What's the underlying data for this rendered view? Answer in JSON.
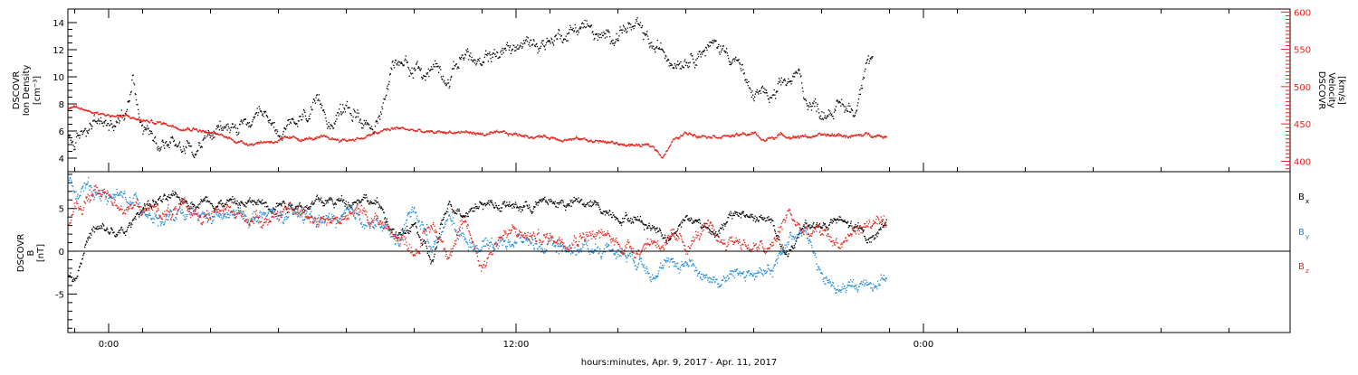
{
  "figure": {
    "xlabel": "hours:minutes, Apr.  9, 2017 - Apr. 11, 2017",
    "x_ticks": [
      "0:00",
      "12:00",
      "0:00"
    ],
    "xlim_hours": [
      -1.2,
      34.8
    ],
    "data_end_hour": 22.9
  },
  "chart_data": [
    {
      "type": "scatter",
      "panel": "plasma",
      "ylabel_left": [
        "DSCOVR",
        "Ion Density",
        "[cm⁻³]"
      ],
      "ylabel_right": [
        "DSCOVR",
        "Velocity",
        "[km/s]"
      ],
      "ylim_left": [
        3,
        15
      ],
      "yticks_left": [
        4,
        6,
        8,
        10,
        12,
        14
      ],
      "ylim_right": [
        386,
        604
      ],
      "yticks_right": [
        400,
        450,
        500,
        550,
        600
      ],
      "grid": false,
      "series": [
        {
          "name": "Ion Density",
          "axis": "left",
          "color": "#000000",
          "x": [
            -1.2,
            -1.0,
            -0.5,
            0.0,
            0.3,
            0.5,
            0.7,
            0.8,
            1.0,
            1.3,
            1.5,
            2.0,
            2.5,
            3.0,
            3.5,
            4.0,
            4.5,
            5.0,
            5.5,
            6.0,
            6.5,
            7.0,
            7.5,
            8.0,
            8.3,
            8.7,
            9.0,
            9.3,
            9.6,
            10.0,
            10.5,
            10.8,
            11.0,
            11.2,
            11.5,
            12.0,
            12.5,
            13.0,
            13.5,
            14.0,
            14.5,
            15.0,
            15.2,
            15.5,
            16.0,
            16.5,
            17.0,
            17.5,
            18.0,
            18.5,
            18.9,
            19.3,
            19.5,
            20.0,
            20.3,
            20.5,
            21.0,
            21.3,
            21.5,
            22.0,
            22.3,
            22.5
          ],
          "y": [
            5.5,
            5.0,
            6.8,
            6.5,
            7.0,
            7.5,
            10.5,
            9.0,
            6.5,
            6.0,
            5.5,
            5.2,
            5.0,
            5.8,
            6.2,
            6.3,
            6.5,
            6.0,
            6.2,
            7.5,
            7.0,
            7.8,
            7.0,
            6.8,
            10.5,
            11.5,
            10.8,
            10.0,
            11.0,
            10.2,
            12.0,
            11.0,
            10.5,
            11.5,
            11.8,
            12.2,
            12.5,
            12.8,
            13.5,
            14.0,
            12.5,
            13.5,
            13.8,
            13.5,
            12.0,
            11.5,
            11.8,
            12.5,
            12.2,
            11.5,
            8.5,
            9.0,
            8.0,
            9.5,
            10.0,
            8.5,
            7.5,
            8.0,
            7.8,
            7.5,
            12.0,
            11.8
          ]
        },
        {
          "name": "Velocity",
          "axis": "right",
          "color": "#e8231b",
          "x": [
            -1.2,
            -0.5,
            0.0,
            0.5,
            1.0,
            1.5,
            2.0,
            2.5,
            3.0,
            3.5,
            4.0,
            5.0,
            6.0,
            7.0,
            7.5,
            8.0,
            8.5,
            9.0,
            9.5,
            10.0,
            10.5,
            11.0,
            12.0,
            13.0,
            14.0,
            15.0,
            16.0,
            16.3,
            16.6,
            17.0,
            18.0,
            18.5,
            19.0,
            19.3,
            19.7,
            20.0,
            21.0,
            21.5,
            22.0,
            22.5,
            22.9
          ],
          "y": [
            471,
            468,
            463,
            460,
            455,
            452,
            448,
            446,
            438,
            432,
            425,
            429,
            431,
            429,
            433,
            440,
            445,
            442,
            438,
            440,
            440,
            437,
            436,
            433,
            430,
            424,
            420,
            408,
            428,
            438,
            436,
            435,
            438,
            428,
            436,
            435,
            434,
            436,
            434,
            437,
            435
          ]
        }
      ]
    },
    {
      "type": "scatter",
      "panel": "magnetic",
      "ylabel_left": [
        "DSCOVR",
        "B",
        "[nT]"
      ],
      "ylim": [
        -9.5,
        9.3
      ],
      "yticks": [
        -5,
        0,
        5
      ],
      "zero_line": true,
      "grid": false,
      "legend_position": "right",
      "series": [
        {
          "name": "B",
          "label_sub": "x",
          "color": "#000000",
          "x": [
            -1.2,
            -1.0,
            -0.7,
            -0.5,
            0.0,
            0.5,
            1.0,
            1.5,
            2.0,
            3.0,
            4.0,
            5.0,
            6.0,
            7.0,
            7.5,
            8.0,
            8.5,
            9.0,
            9.5,
            10.0,
            10.5,
            11.0,
            12.0,
            13.0,
            14.0,
            15.0,
            15.5,
            16.0,
            16.5,
            17.0,
            18.0,
            18.5,
            19.0,
            19.5,
            20.0,
            20.5,
            21.0,
            21.5,
            22.0,
            22.5,
            22.9
          ],
          "y": [
            -2.8,
            -3.0,
            1.0,
            2.5,
            2.2,
            2.0,
            5.5,
            6.0,
            5.8,
            6.2,
            5.5,
            6.0,
            5.5,
            6.0,
            6.8,
            5.0,
            1.5,
            3.0,
            -1.5,
            5.5,
            5.0,
            6.0,
            5.2,
            5.8,
            5.5,
            4.5,
            4.0,
            3.0,
            2.0,
            4.0,
            2.5,
            4.5,
            4.0,
            3.5,
            -1.0,
            3.5,
            3.0,
            3.5,
            2.5,
            1.5,
            4.0
          ]
        },
        {
          "name": "B",
          "label_sub": "y",
          "color": "#1c8ad8",
          "x": [
            -1.2,
            -0.8,
            -0.5,
            0.0,
            0.5,
            1.0,
            1.5,
            2.0,
            3.0,
            4.0,
            5.0,
            6.0,
            7.0,
            7.5,
            8.0,
            8.5,
            9.0,
            9.5,
            10.0,
            10.5,
            11.0,
            12.0,
            13.0,
            14.0,
            15.0,
            15.5,
            16.0,
            16.5,
            17.0,
            17.5,
            18.0,
            18.5,
            19.0,
            19.5,
            20.0,
            20.5,
            21.0,
            21.5,
            22.0,
            22.5,
            22.9
          ],
          "y": [
            8.0,
            7.5,
            7.2,
            6.5,
            6.0,
            5.5,
            4.0,
            3.8,
            3.8,
            4.2,
            4.0,
            3.8,
            3.5,
            4.0,
            3.0,
            1.0,
            5.5,
            0.5,
            4.0,
            1.5,
            1.0,
            1.5,
            0.5,
            0.5,
            0.5,
            -0.5,
            -1.5,
            -2.0,
            -1.0,
            -2.5,
            -3.5,
            -2.5,
            -2.5,
            -3.0,
            1.5,
            3.5,
            -3.5,
            -4.5,
            -4.0,
            -3.5,
            -2.5
          ]
        },
        {
          "name": "B",
          "label_sub": "z",
          "color": "#e8231b",
          "x": [
            -1.2,
            -1.0,
            -0.7,
            -0.5,
            0.0,
            0.5,
            1.0,
            1.5,
            2.0,
            3.0,
            4.0,
            5.0,
            6.0,
            7.0,
            7.5,
            8.0,
            8.5,
            9.0,
            9.5,
            10.0,
            10.5,
            11.0,
            11.5,
            12.0,
            13.0,
            14.0,
            15.0,
            15.5,
            16.0,
            16.5,
            17.0,
            17.5,
            18.0,
            18.5,
            19.0,
            19.5,
            20.0,
            20.5,
            21.0,
            21.5,
            22.0,
            22.5,
            22.9
          ],
          "y": [
            3.0,
            4.5,
            5.5,
            7.0,
            6.5,
            5.5,
            5.0,
            4.8,
            4.5,
            4.5,
            4.0,
            4.5,
            4.2,
            4.0,
            4.5,
            3.5,
            2.0,
            0.5,
            3.0,
            0.5,
            3.0,
            -1.5,
            2.0,
            2.0,
            1.5,
            2.5,
            1.0,
            0.5,
            1.5,
            1.0,
            0.5,
            2.5,
            1.0,
            1.5,
            0.5,
            0.0,
            4.5,
            2.0,
            2.0,
            1.0,
            2.5,
            3.5,
            2.0
          ]
        }
      ]
    }
  ]
}
